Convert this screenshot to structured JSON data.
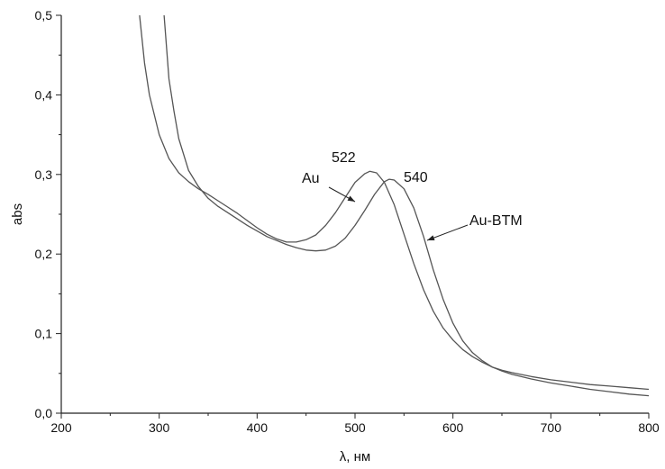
{
  "chart_data": {
    "type": "line",
    "title": "",
    "xlabel": "λ, нм",
    "ylabel": "abs",
    "xlim": [
      200,
      800
    ],
    "ylim": [
      0.0,
      0.5
    ],
    "x_ticks": [
      200,
      300,
      400,
      500,
      600,
      700,
      800
    ],
    "x_tick_labels": [
      "200",
      "300",
      "400",
      "500",
      "600",
      "700",
      "800"
    ],
    "y_ticks": [
      0.0,
      0.1,
      0.2,
      0.3,
      0.4,
      0.5
    ],
    "y_tick_labels": [
      "0,0",
      "0,1",
      "0,2",
      "0,3",
      "0,4",
      "0,5"
    ],
    "grid": false,
    "line_color": "#555555",
    "series": [
      {
        "name": "Au",
        "x": [
          280,
          285,
          290,
          300,
          310,
          320,
          330,
          340,
          350,
          360,
          370,
          380,
          390,
          400,
          410,
          420,
          430,
          440,
          450,
          460,
          470,
          480,
          490,
          500,
          510,
          515,
          522,
          530,
          540,
          550,
          560,
          570,
          580,
          590,
          600,
          610,
          620,
          630,
          640,
          650,
          660,
          680,
          700,
          720,
          740,
          760,
          780,
          800
        ],
        "y": [
          0.5,
          0.44,
          0.4,
          0.35,
          0.32,
          0.302,
          0.291,
          0.282,
          0.275,
          0.267,
          0.259,
          0.251,
          0.242,
          0.233,
          0.225,
          0.219,
          0.215,
          0.215,
          0.218,
          0.224,
          0.236,
          0.252,
          0.271,
          0.29,
          0.301,
          0.304,
          0.302,
          0.29,
          0.262,
          0.225,
          0.188,
          0.155,
          0.128,
          0.107,
          0.092,
          0.08,
          0.071,
          0.064,
          0.058,
          0.054,
          0.051,
          0.046,
          0.042,
          0.039,
          0.036,
          0.034,
          0.032,
          0.03
        ]
      },
      {
        "name": "Au-BTM",
        "x": [
          305,
          310,
          315,
          320,
          330,
          340,
          350,
          360,
          370,
          380,
          390,
          400,
          410,
          420,
          430,
          440,
          450,
          460,
          470,
          480,
          490,
          500,
          510,
          520,
          530,
          535,
          540,
          550,
          560,
          570,
          580,
          590,
          600,
          610,
          620,
          630,
          640,
          650,
          660,
          680,
          700,
          720,
          740,
          760,
          780,
          800
        ],
        "y": [
          0.5,
          0.42,
          0.38,
          0.345,
          0.305,
          0.285,
          0.27,
          0.26,
          0.252,
          0.244,
          0.236,
          0.229,
          0.222,
          0.217,
          0.212,
          0.208,
          0.205,
          0.204,
          0.205,
          0.21,
          0.22,
          0.236,
          0.255,
          0.275,
          0.291,
          0.294,
          0.293,
          0.282,
          0.258,
          0.222,
          0.18,
          0.143,
          0.113,
          0.091,
          0.076,
          0.066,
          0.058,
          0.053,
          0.049,
          0.043,
          0.038,
          0.034,
          0.03,
          0.027,
          0.024,
          0.022
        ]
      }
    ],
    "annotations": [
      {
        "id": "label-au",
        "text": "Au"
      },
      {
        "id": "label-au-btm",
        "text": "Au-BTM"
      },
      {
        "id": "peak-522",
        "text": "522"
      },
      {
        "id": "peak-540",
        "text": "540"
      }
    ]
  }
}
